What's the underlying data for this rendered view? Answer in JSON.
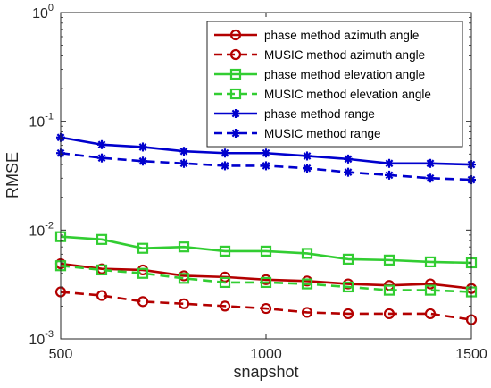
{
  "chart_data": {
    "type": "line",
    "title": "",
    "xlabel": "snapshot",
    "ylabel": "RMSE",
    "xlim": [
      500,
      1500
    ],
    "ylim": [
      0.001,
      1
    ],
    "yscale": "log",
    "grid": false,
    "legend_placement": "top-right",
    "x_ticks": [
      500,
      1000,
      1500
    ],
    "x_tick_labels": [
      "500",
      "1000",
      "1500"
    ],
    "y_ticks": [
      {
        "value": 0.001,
        "base": "10",
        "exp": "-3"
      },
      {
        "value": 0.01,
        "base": "10",
        "exp": "-2"
      },
      {
        "value": 0.1,
        "base": "10",
        "exp": "-1"
      },
      {
        "value": 1,
        "base": "10",
        "exp": "0"
      }
    ],
    "x": [
      500,
      600,
      700,
      800,
      900,
      1000,
      1100,
      1200,
      1300,
      1400,
      1500
    ],
    "series": [
      {
        "name": "phase method azimuth angle",
        "color": "#b30000",
        "dash": "solid",
        "marker": "circle",
        "values": [
          0.0049,
          0.0044,
          0.0043,
          0.0038,
          0.0037,
          0.0035,
          0.0034,
          0.0032,
          0.0031,
          0.0032,
          0.0029
        ]
      },
      {
        "name": "MUSIC method azimuth angle",
        "color": "#b30000",
        "dash": "dashed",
        "marker": "circle",
        "values": [
          0.0027,
          0.0025,
          0.0022,
          0.0021,
          0.002,
          0.0019,
          0.00175,
          0.0017,
          0.0017,
          0.0017,
          0.0015
        ]
      },
      {
        "name": "phase method elevation angle",
        "color": "#32cd32",
        "dash": "solid",
        "marker": "square",
        "values": [
          0.0087,
          0.0082,
          0.0068,
          0.007,
          0.0064,
          0.0064,
          0.0061,
          0.0054,
          0.0053,
          0.0051,
          0.005
        ]
      },
      {
        "name": "MUSIC method elevation angle",
        "color": "#32cd32",
        "dash": "dashed",
        "marker": "square",
        "values": [
          0.0047,
          0.0043,
          0.004,
          0.0036,
          0.0033,
          0.0033,
          0.0032,
          0.003,
          0.0028,
          0.0028,
          0.0027
        ]
      },
      {
        "name": "phase method range",
        "color": "#0000cd",
        "dash": "solid",
        "marker": "asterisk",
        "values": [
          0.071,
          0.061,
          0.058,
          0.053,
          0.051,
          0.051,
          0.048,
          0.045,
          0.041,
          0.041,
          0.04
        ]
      },
      {
        "name": "MUSIC method range",
        "color": "#0000cd",
        "dash": "dashed",
        "marker": "asterisk",
        "values": [
          0.051,
          0.046,
          0.043,
          0.041,
          0.039,
          0.039,
          0.037,
          0.034,
          0.032,
          0.03,
          0.029
        ]
      }
    ]
  }
}
